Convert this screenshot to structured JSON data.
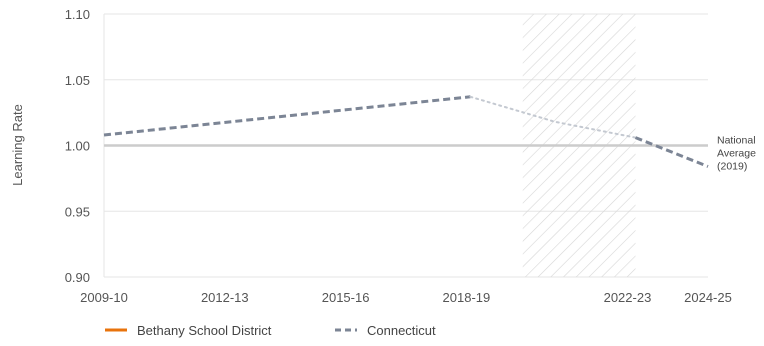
{
  "chart_data": {
    "type": "line",
    "title": "",
    "xlabel": "",
    "ylabel": "Learning Rate",
    "x_ticks": [
      "2009-10",
      "2012-13",
      "2015-16",
      "2018-19",
      "2022-23",
      "2024-25"
    ],
    "y_ticks": [
      "0.90",
      "0.95",
      "1.00",
      "1.05",
      "1.10"
    ],
    "ylim": [
      0.9,
      1.1
    ],
    "grid": true,
    "reference_line": {
      "y": 1.0,
      "label": [
        "National",
        "Average",
        "(2019)"
      ]
    },
    "shaded_region": {
      "x": [
        2019.4,
        2022.2
      ],
      "pattern": "diagonal-hatch"
    },
    "series": [
      {
        "name": "Bethany School District",
        "color": "#e8730c",
        "style": "solid",
        "points": []
      },
      {
        "name": "Connecticut",
        "color": "#7c8595",
        "style": "dashed",
        "segments": [
          {
            "style": "dashed",
            "points": [
              [
                2009,
                1.008
              ],
              [
                2018.1,
                1.037
              ]
            ]
          },
          {
            "style": "dotted",
            "points": [
              [
                2018.1,
                1.037
              ],
              [
                2020.2,
                1.018
              ],
              [
                2022.2,
                1.006
              ]
            ]
          },
          {
            "style": "dashed",
            "points": [
              [
                2022.2,
                1.006
              ],
              [
                2024,
                0.984
              ]
            ]
          }
        ]
      }
    ],
    "legend_position": "bottom"
  },
  "colors": {
    "grid": "#e6e6e6",
    "reference": "#cccccc",
    "hatch": "#d6d6d6"
  }
}
